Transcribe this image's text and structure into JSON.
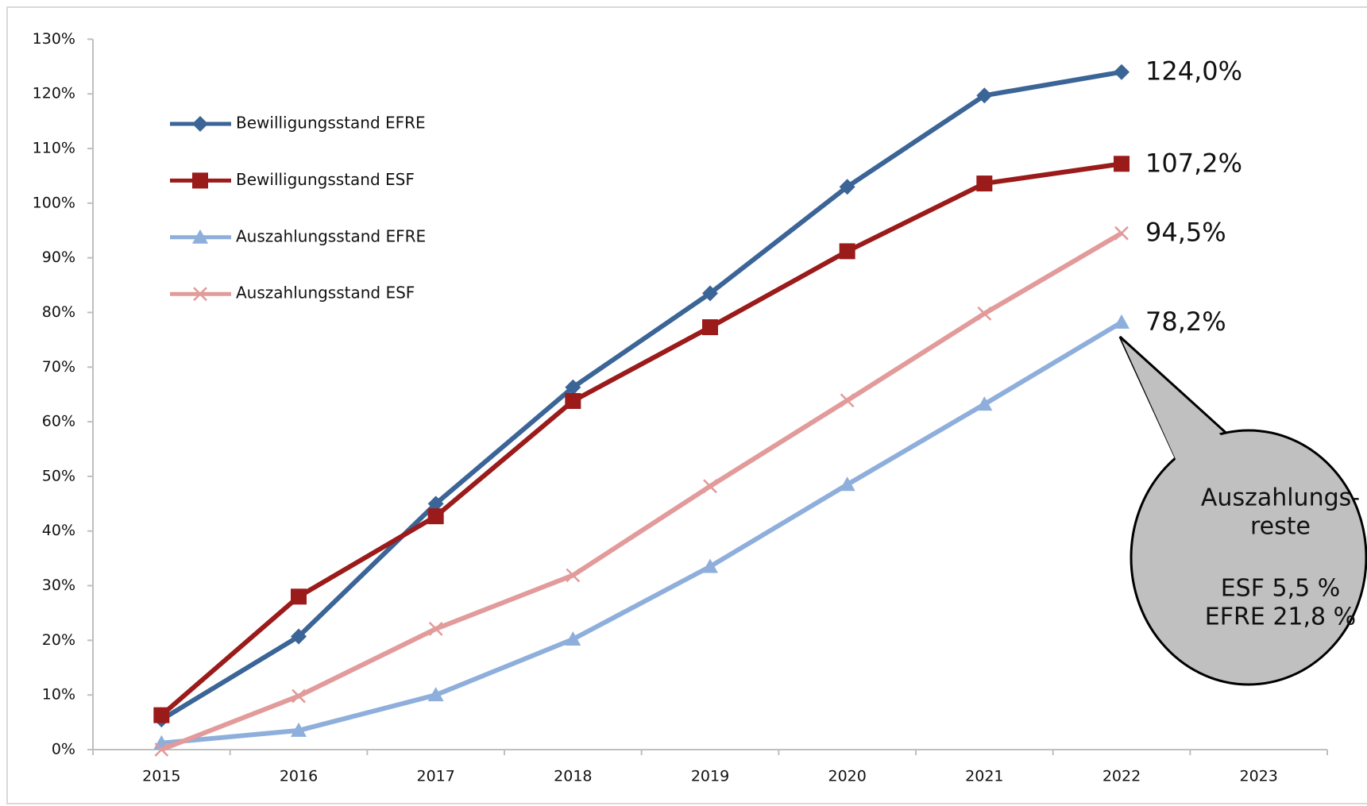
{
  "chart_data": {
    "type": "line",
    "categories": [
      "2015",
      "2016",
      "2017",
      "2018",
      "2019",
      "2020",
      "2021",
      "2022",
      "2023"
    ],
    "ylim": [
      0,
      130
    ],
    "yticks": [
      {
        "value": 0,
        "label": "0%"
      },
      {
        "value": 10,
        "label": "10%"
      },
      {
        "value": 20,
        "label": "20%"
      },
      {
        "value": 30,
        "label": "30%"
      },
      {
        "value": 40,
        "label": "40%"
      },
      {
        "value": 50,
        "label": "50%"
      },
      {
        "value": 60,
        "label": "60%"
      },
      {
        "value": 70,
        "label": "70%"
      },
      {
        "value": 80,
        "label": "80%"
      },
      {
        "value": 90,
        "label": "90%"
      },
      {
        "value": 100,
        "label": "100%"
      },
      {
        "value": 110,
        "label": "110%"
      },
      {
        "value": 120,
        "label": "120%"
      },
      {
        "value": 130,
        "label": "130%"
      }
    ],
    "grid": false,
    "legend": "upper-left",
    "series": [
      {
        "name": "Bewilligungsstand EFRE",
        "color": "#3b6497",
        "marker": "diamond",
        "values": [
          5.5,
          20.7,
          45,
          66.3,
          83.5,
          103,
          119.7,
          124.0,
          null
        ],
        "value_labels": [
          null,
          null,
          null,
          null,
          null,
          null,
          null,
          "124,0%",
          null
        ]
      },
      {
        "name": "Bewilligungsstand ESF",
        "color": "#9b1a1a",
        "marker": "square",
        "values": [
          6.3,
          28,
          42.7,
          63.8,
          77.3,
          91.2,
          103.6,
          107.2,
          null
        ],
        "value_labels": [
          null,
          null,
          null,
          null,
          null,
          null,
          null,
          "107,2%",
          null
        ]
      },
      {
        "name": "Auszahlungsstand EFRE",
        "color": "#8eaedb",
        "marker": "triangle",
        "values": [
          1.2,
          3.5,
          10,
          20.2,
          33.5,
          48.5,
          63.2,
          78.2,
          null
        ],
        "value_labels": [
          null,
          null,
          null,
          null,
          null,
          null,
          null,
          "78,2%",
          null
        ]
      },
      {
        "name": "Auszahlungsstand ESF",
        "color": "#e29a9a",
        "marker": "x",
        "values": [
          0,
          9.8,
          22.1,
          31.9,
          48.2,
          63.9,
          79.8,
          94.5,
          null
        ],
        "value_labels": [
          null,
          null,
          null,
          null,
          null,
          null,
          null,
          "94,5%",
          null
        ]
      }
    ],
    "annotations": {
      "callout": [
        "Auszahlungs-",
        "reste",
        "ESF 5,5 %",
        "EFRE 21,8 %"
      ]
    }
  }
}
